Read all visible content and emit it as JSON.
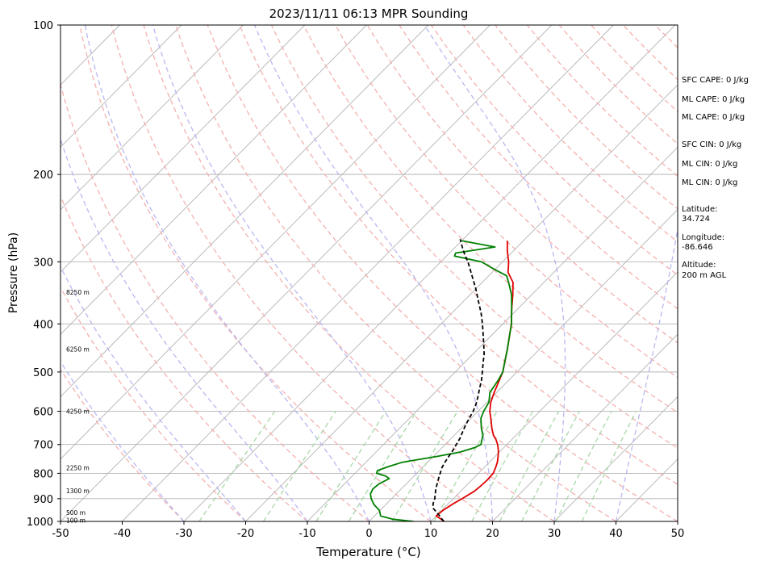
{
  "chart_data": {
    "type": "line",
    "title": "2023/11/11 06:13 MPR Sounding",
    "xlabel": "Temperature (°C)",
    "ylabel": "Pressure (hPa)",
    "xlim": [
      -50,
      50
    ],
    "ylim": [
      1000,
      100
    ],
    "y_scale": "log",
    "skew": true,
    "grid": true,
    "x_ticks": [
      -50,
      -40,
      -30,
      -20,
      -10,
      0,
      10,
      20,
      30,
      40,
      50
    ],
    "y_ticks": [
      1000,
      900,
      800,
      700,
      600,
      500,
      400,
      300,
      200,
      100
    ],
    "height_labels": [
      {
        "p": 995,
        "label": "100 m"
      },
      {
        "p": 960,
        "label": "500 m"
      },
      {
        "p": 868,
        "label": "1300 m"
      },
      {
        "p": 780,
        "label": "2250 m"
      },
      {
        "p": 600,
        "label": "4250 m"
      },
      {
        "p": 450,
        "label": "6250 m"
      },
      {
        "p": 345,
        "label": "8250 m"
      }
    ],
    "series": [
      {
        "color": "#e00000",
        "points": [
          [
            1000,
            12.2
          ],
          [
            985,
            10.9
          ],
          [
            975,
            10.0
          ],
          [
            950,
            10.2
          ],
          [
            925,
            10.7
          ],
          [
            900,
            11.4
          ],
          [
            870,
            12.2
          ],
          [
            850,
            12.4
          ],
          [
            825,
            12.5
          ],
          [
            800,
            12.4
          ],
          [
            780,
            11.9
          ],
          [
            760,
            11.3
          ],
          [
            740,
            10.5
          ],
          [
            720,
            9.6
          ],
          [
            700,
            8.5
          ],
          [
            685,
            7.5
          ],
          [
            670,
            6.3
          ],
          [
            650,
            5.0
          ],
          [
            620,
            3.2
          ],
          [
            600,
            1.9
          ],
          [
            575,
            0.6
          ],
          [
            550,
            -0.4
          ],
          [
            520,
            -1.5
          ],
          [
            500,
            -2.3
          ],
          [
            470,
            -4.0
          ],
          [
            450,
            -5.2
          ],
          [
            420,
            -7.2
          ],
          [
            400,
            -8.6
          ],
          [
            375,
            -10.8
          ],
          [
            350,
            -13.0
          ],
          [
            330,
            -15.0
          ],
          [
            315,
            -17.4
          ],
          [
            300,
            -19.0
          ],
          [
            285,
            -21.0
          ],
          [
            272,
            -22.6
          ]
        ]
      },
      {
        "color": "#008000",
        "points": [
          [
            1000,
            7.2
          ],
          [
            990,
            3.5
          ],
          [
            975,
            1.0
          ],
          [
            950,
            -0.1
          ],
          [
            925,
            -1.9
          ],
          [
            900,
            -3.3
          ],
          [
            880,
            -4.2
          ],
          [
            860,
            -4.6
          ],
          [
            840,
            -4.4
          ],
          [
            820,
            -3.6
          ],
          [
            810,
            -4.6
          ],
          [
            800,
            -6.5
          ],
          [
            790,
            -6.8
          ],
          [
            775,
            -5.6
          ],
          [
            760,
            -4.1
          ],
          [
            740,
            0.5
          ],
          [
            725,
            3.6
          ],
          [
            710,
            5.3
          ],
          [
            700,
            5.8
          ],
          [
            685,
            5.2
          ],
          [
            670,
            4.6
          ],
          [
            650,
            3.3
          ],
          [
            620,
            1.6
          ],
          [
            600,
            0.9
          ],
          [
            575,
            0.3
          ],
          [
            550,
            -1.1
          ],
          [
            520,
            -1.7
          ],
          [
            500,
            -2.3
          ],
          [
            470,
            -4.0
          ],
          [
            450,
            -5.2
          ],
          [
            420,
            -7.2
          ],
          [
            400,
            -8.6
          ],
          [
            375,
            -10.8
          ],
          [
            350,
            -13.2
          ],
          [
            330,
            -15.7
          ],
          [
            320,
            -17.1
          ],
          [
            310,
            -20.3
          ],
          [
            300,
            -23.4
          ],
          [
            292,
            -28.7
          ],
          [
            288,
            -29.0
          ],
          [
            280,
            -23.6
          ],
          [
            272,
            -30.0
          ]
        ]
      },
      {
        "color": "#000000",
        "dashed": true,
        "points": [
          [
            1000,
            12.1
          ],
          [
            960,
            9.6
          ],
          [
            940,
            8.2
          ],
          [
            920,
            7.5
          ],
          [
            900,
            7.0
          ],
          [
            880,
            6.3
          ],
          [
            860,
            5.6
          ],
          [
            840,
            5.0
          ],
          [
            820,
            4.4
          ],
          [
            800,
            3.8
          ],
          [
            780,
            3.2
          ],
          [
            760,
            2.8
          ],
          [
            740,
            2.5
          ],
          [
            720,
            2.2
          ],
          [
            700,
            1.8
          ],
          [
            680,
            1.4
          ],
          [
            660,
            0.8
          ],
          [
            640,
            0.2
          ],
          [
            620,
            -0.3
          ],
          [
            600,
            -0.8
          ],
          [
            580,
            -1.5
          ],
          [
            560,
            -2.4
          ],
          [
            540,
            -3.4
          ],
          [
            520,
            -4.4
          ],
          [
            500,
            -5.6
          ],
          [
            480,
            -6.9
          ],
          [
            460,
            -8.2
          ],
          [
            440,
            -9.8
          ],
          [
            420,
            -11.5
          ],
          [
            400,
            -13.3
          ],
          [
            380,
            -15.3
          ],
          [
            360,
            -17.6
          ],
          [
            340,
            -20.0
          ],
          [
            320,
            -22.7
          ],
          [
            300,
            -25.6
          ],
          [
            290,
            -27.3
          ],
          [
            280,
            -28.9
          ],
          [
            270,
            -30.5
          ]
        ]
      }
    ]
  },
  "indices": [
    "SFC CAPE: 0 J/kg",
    "ML CAPE: 0 J/kg",
    "ML CAPE: 0 J/kg",
    "SFC CIN: 0 J/kg",
    "ML CIN: 0 J/kg",
    "ML CIN: 0 J/kg"
  ],
  "location": {
    "latitude_label": "Latitude:",
    "latitude_value": "34.724",
    "longitude_label": "Longitude:",
    "longitude_value": "-86.646",
    "altitude_label": "Altitude:",
    "altitude_value": "200 m AGL"
  },
  "colors": {
    "isotherm": "#b4b4b4",
    "pressure_grid": "#b4b4b4",
    "dry_adiabat": "#f4b0b0",
    "moist_adiabat": "#b8b8f2",
    "mixing_ratio": "#a8d8a8"
  }
}
